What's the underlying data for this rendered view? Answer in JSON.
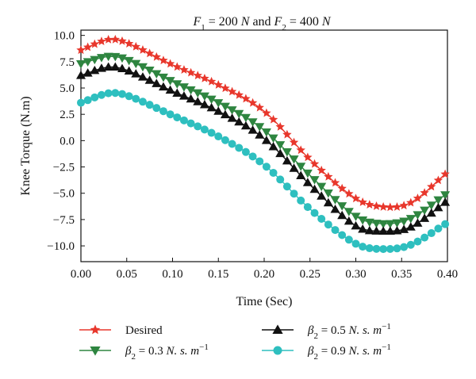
{
  "chart_data": {
    "type": "line",
    "title_parts": [
      {
        "t": "F",
        "italic": true
      },
      {
        "t": "1",
        "sub": true
      },
      {
        "t": " = 200 ",
        "italic": false
      },
      {
        "t": "N",
        "italic": true
      },
      {
        "t": " and ",
        "italic": false
      },
      {
        "t": "F",
        "italic": true
      },
      {
        "t": "2",
        "sub": true
      },
      {
        "t": " = 400 ",
        "italic": false
      },
      {
        "t": "N",
        "italic": true
      }
    ],
    "xlabel": "Time (Sec)",
    "ylabel": "Knee Torque (N.m)",
    "xlim": [
      0.0,
      0.4
    ],
    "ylim": [
      -11.5,
      10.5
    ],
    "xticks": [
      0.0,
      0.05,
      0.1,
      0.15,
      0.2,
      0.25,
      0.3,
      0.35,
      0.4
    ],
    "xtick_labels": [
      "0.00",
      "0.05",
      "0.10",
      "0.15",
      "0.20",
      "0.25",
      "0.30",
      "0.35",
      "0.40"
    ],
    "yticks": [
      10.0,
      7.5,
      5.0,
      2.5,
      0.0,
      -2.5,
      -5.0,
      -7.5,
      -10.0
    ],
    "ytick_labels": [
      "10.0",
      "7.5",
      "5.0",
      "2.5",
      "0.0",
      "−2.5",
      "−5.0",
      "−7.5",
      "−10.0"
    ],
    "x_step": 0.0075,
    "series": [
      {
        "name": "Desired",
        "legend_parts": [
          {
            "t": "Desired"
          }
        ],
        "marker": "star",
        "color": "#e8372c",
        "curve_points": [
          [
            0.0,
            8.6
          ],
          [
            0.03,
            9.6
          ],
          [
            0.05,
            9.3
          ],
          [
            0.1,
            7.2
          ],
          [
            0.15,
            5.3
          ],
          [
            0.2,
            2.8
          ],
          [
            0.25,
            -1.8
          ],
          [
            0.3,
            -5.5
          ],
          [
            0.33,
            -6.3
          ],
          [
            0.36,
            -5.9
          ],
          [
            0.4,
            -3.0
          ]
        ]
      },
      {
        "name": "β2 = 0.3 N. s. m−1",
        "legend_parts": [
          {
            "t": "β",
            "italic": true
          },
          {
            "t": "2",
            "sub": true
          },
          {
            "t": " = 0.3 "
          },
          {
            "t": "N. s. m",
            "italic": true
          },
          {
            "t": "−1",
            "sup": true
          }
        ],
        "marker": "triangle-down",
        "color": "#2e8540",
        "curve_points": [
          [
            0.0,
            7.3
          ],
          [
            0.03,
            8.0
          ],
          [
            0.05,
            7.7
          ],
          [
            0.1,
            5.6
          ],
          [
            0.15,
            3.6
          ],
          [
            0.2,
            1.0
          ],
          [
            0.25,
            -3.3
          ],
          [
            0.3,
            -7.2
          ],
          [
            0.33,
            -7.9
          ],
          [
            0.36,
            -7.4
          ],
          [
            0.4,
            -5.0
          ]
        ]
      },
      {
        "name": "β2 = 0.5 N. s. m−1",
        "legend_parts": [
          {
            "t": "β",
            "italic": true
          },
          {
            "t": "2",
            "sub": true
          },
          {
            "t": " = 0.5 "
          },
          {
            "t": "N. s. m",
            "italic": true
          },
          {
            "t": "−1",
            "sup": true
          }
        ],
        "marker": "triangle-up",
        "color": "#111111",
        "curve_points": [
          [
            0.0,
            6.2
          ],
          [
            0.03,
            7.0
          ],
          [
            0.05,
            6.7
          ],
          [
            0.1,
            4.7
          ],
          [
            0.15,
            2.8
          ],
          [
            0.2,
            0.2
          ],
          [
            0.25,
            -4.2
          ],
          [
            0.3,
            -8.1
          ],
          [
            0.33,
            -8.6
          ],
          [
            0.36,
            -8.2
          ],
          [
            0.4,
            -5.7
          ]
        ]
      },
      {
        "name": "β2 = 0.9 N. s. m−1",
        "legend_parts": [
          {
            "t": "β",
            "italic": true
          },
          {
            "t": "2",
            "sub": true
          },
          {
            "t": " = 0.9 "
          },
          {
            "t": "N. s. m",
            "italic": true
          },
          {
            "t": "−1",
            "sup": true
          }
        ],
        "marker": "circle",
        "color": "#2ebfbf",
        "curve_points": [
          [
            0.0,
            3.6
          ],
          [
            0.03,
            4.5
          ],
          [
            0.05,
            4.3
          ],
          [
            0.1,
            2.4
          ],
          [
            0.15,
            0.4
          ],
          [
            0.2,
            -2.3
          ],
          [
            0.25,
            -6.5
          ],
          [
            0.3,
            -9.8
          ],
          [
            0.33,
            -10.3
          ],
          [
            0.36,
            -9.9
          ],
          [
            0.4,
            -7.8
          ]
        ]
      }
    ],
    "legend_placement": "bottom, two columns",
    "grid": false
  }
}
